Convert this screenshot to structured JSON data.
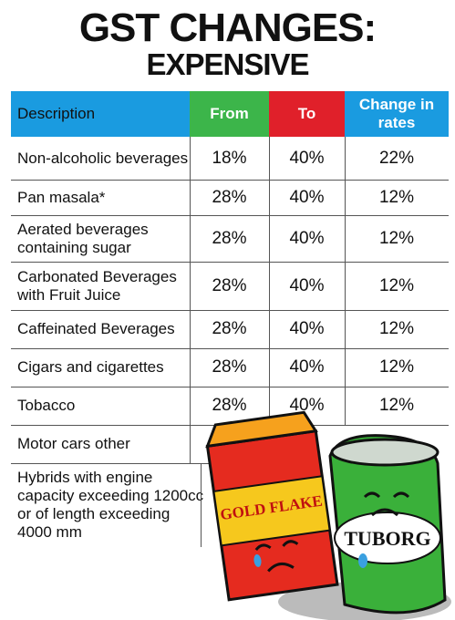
{
  "header": {
    "title": "GST CHANGES:",
    "subtitle": "EXPENSIVE"
  },
  "table": {
    "headers": [
      "Description",
      "From",
      "To",
      "Change in rates"
    ],
    "rows": [
      [
        "Non-alcoholic beverages",
        "18%",
        "40%",
        "22%"
      ],
      [
        "Pan masala*",
        "28%",
        "40%",
        "12%"
      ],
      [
        "Aerated beverages containing sugar",
        "28%",
        "40%",
        "12%"
      ],
      [
        "Carbonated Beverages with Fruit Juice",
        "28%",
        "40%",
        "12%"
      ],
      [
        "Caffeinated Beverages",
        "28%",
        "40%",
        "12%"
      ],
      [
        "Cigars and cigarettes",
        "28%",
        "40%",
        "12%"
      ],
      [
        "Tobacco",
        "28%",
        "40%",
        "12%"
      ],
      [
        "Motor cars other"
      ],
      [
        "Hybrids with engine capacity exceeding 1200cc or of length exceeding 4000 mm"
      ]
    ]
  },
  "illustration": {
    "box_label": "GOLD FLAKE",
    "can_label": "TUBORG"
  }
}
